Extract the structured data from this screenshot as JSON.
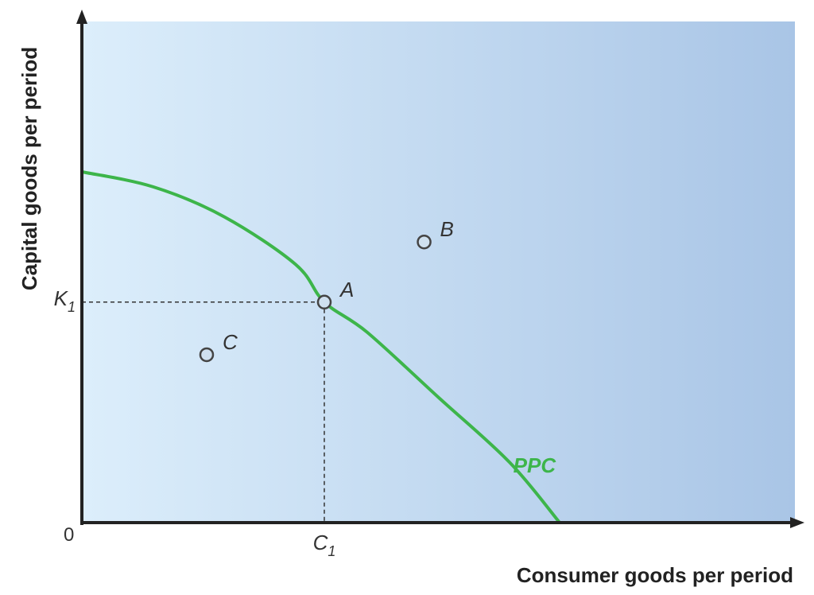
{
  "chart_data": {
    "type": "line",
    "title": "",
    "xlabel": "Consumer goods per period",
    "ylabel": "Capital goods per period",
    "origin_label": "0",
    "xlim": [
      0,
      100
    ],
    "ylim": [
      0,
      100
    ],
    "grid": false,
    "background": {
      "from": "#dceefb",
      "to": "#a9c5e6"
    },
    "series": [
      {
        "name": "PPC",
        "color": "#3db54a",
        "x": [
          0,
          10,
          20,
          30,
          34,
          40,
          50,
          60,
          67
        ],
        "y": [
          70,
          67,
          61,
          51.5,
          44,
          38,
          25,
          12,
          0
        ]
      }
    ],
    "points": [
      {
        "label": "A",
        "x": 34,
        "y": 44
      },
      {
        "label": "B",
        "x": 48,
        "y": 56
      },
      {
        "label": "C",
        "x": 17.5,
        "y": 33.5
      }
    ],
    "reference": {
      "x_tick": {
        "main": "C",
        "sub": "1",
        "value": 34
      },
      "y_tick": {
        "main": "K",
        "sub": "1",
        "value": 44
      }
    },
    "axis_color": "#222222",
    "point_stroke": "#444444",
    "point_fill": "#cfe0ef"
  }
}
